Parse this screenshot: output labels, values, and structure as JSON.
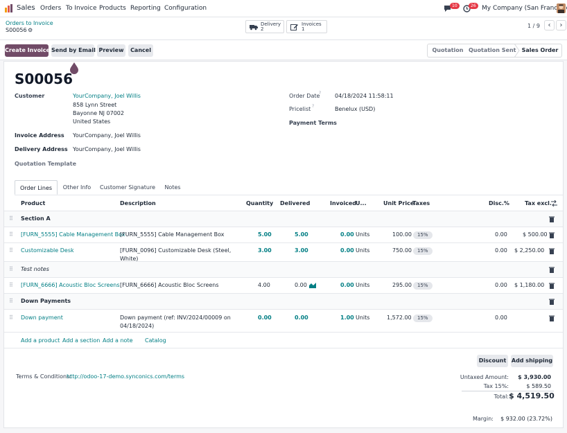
{
  "topbar": {
    "app_name": "Sales",
    "menu": [
      "Orders",
      "To Invoice",
      "Products",
      "Reporting",
      "Configuration"
    ],
    "chat_badge": "10",
    "activity_badge": "26",
    "company": "My Company (San Francisco)"
  },
  "breadcrumb": {
    "parent": "Orders to Invoice",
    "current": "S00056"
  },
  "smart_buttons": [
    {
      "label": "Delivery",
      "count": "2"
    },
    {
      "label": "Invoices",
      "count": "1"
    }
  ],
  "pager": {
    "value": "1 / 9"
  },
  "actions": {
    "create_invoice": "Create Invoice",
    "send_email": "Send by Email",
    "preview": "Preview",
    "cancel": "Cancel"
  },
  "stages": [
    "Quotation",
    "Quotation Sent",
    "Sales Order"
  ],
  "order": {
    "name": "S00056",
    "customer_label": "Customer",
    "customer_name": "YourCompany, Joel Willis",
    "address1": "858 Lynn Street",
    "address2": "Bayonne NJ 07002",
    "address3": "United States",
    "invoice_address_label": "Invoice Address",
    "invoice_address": "YourCompany, Joel Willis",
    "delivery_address_label": "Delivery Address",
    "delivery_address": "YourCompany, Joel Willis",
    "quotation_template_label": "Quotation Template",
    "order_date_label": "Order Date",
    "order_date": "04/18/2024 11:58:11",
    "pricelist_label": "Pricelist",
    "pricelist": "Benelux (USD)",
    "payment_terms_label": "Payment Terms",
    "help_mark": "?"
  },
  "tabs": [
    "Order Lines",
    "Other Info",
    "Customer Signature",
    "Notes"
  ],
  "columns": {
    "product": "Product",
    "description": "Description",
    "quantity": "Quantity",
    "delivered": "Delivered",
    "invoiced": "Invoiced",
    "uom": "U...",
    "unit_price": "Unit Price",
    "taxes": "Taxes",
    "disc": "Disc.%",
    "subtotal": "Tax excl."
  },
  "lines": {
    "section_a": "Section A",
    "l1": {
      "product": "[FURN_5555] Cable Management Box",
      "desc": "[FURN_5555] Cable Management Box",
      "qty": "5.00",
      "delivered": "5.00",
      "invoiced": "0.00",
      "uom": "Units",
      "price": "100.00",
      "tax": "15%",
      "disc": "0.00",
      "subtotal": "$ 500.00"
    },
    "l2": {
      "product": "Customizable Desk",
      "desc1": "[FURN_0096] Customizable Desk (Steel,",
      "desc2": "White)",
      "qty": "3.00",
      "delivered": "3.00",
      "invoiced": "0.00",
      "uom": "Units",
      "price": "750.00",
      "tax": "15%",
      "disc": "0.00",
      "subtotal": "$ 2,250.00"
    },
    "note": "Test notes",
    "l3": {
      "product": "[FURN_6666] Acoustic Bloc Screens",
      "desc": "[FURN_6666] Acoustic Bloc Screens",
      "qty": "4.00",
      "delivered": "0.00",
      "invoiced": "0.00",
      "uom": "Units",
      "price": "295.00",
      "tax": "15%",
      "disc": "0.00",
      "subtotal": "$ 1,180.00"
    },
    "down_section": "Down Payments",
    "l4": {
      "product": "Down payment",
      "desc1": "Down payment (ref: INV/2024/00009 on",
      "desc2": "04/18/2024)",
      "qty": "0.00",
      "delivered": "0.00",
      "invoiced": "1.00",
      "uom": "Units",
      "price": "1,572.00",
      "tax": "15%",
      "disc": "0.00"
    }
  },
  "add_links": {
    "product": "Add a product",
    "section": "Add a section",
    "note": "Add a note",
    "catalog": "Catalog"
  },
  "footer_buttons": {
    "discount": "Discount",
    "shipping": "Add shipping"
  },
  "terms": {
    "label": "Terms & Conditions:",
    "url": "http://odoo-17-demo.synconics.com/terms"
  },
  "totals": {
    "untaxed_label": "Untaxed Amount:",
    "untaxed": "$ 3,930.00",
    "tax_label": "Tax 15%:",
    "tax": "$ 589.50",
    "total_label": "Total:",
    "total": "$ 4,519.50",
    "margin_label": "Margin:",
    "margin": "$ 932.00 (23.72%)"
  },
  "colors": {
    "primary": "#714b67",
    "link": "#017e84",
    "chat_badge": "#e63946"
  }
}
